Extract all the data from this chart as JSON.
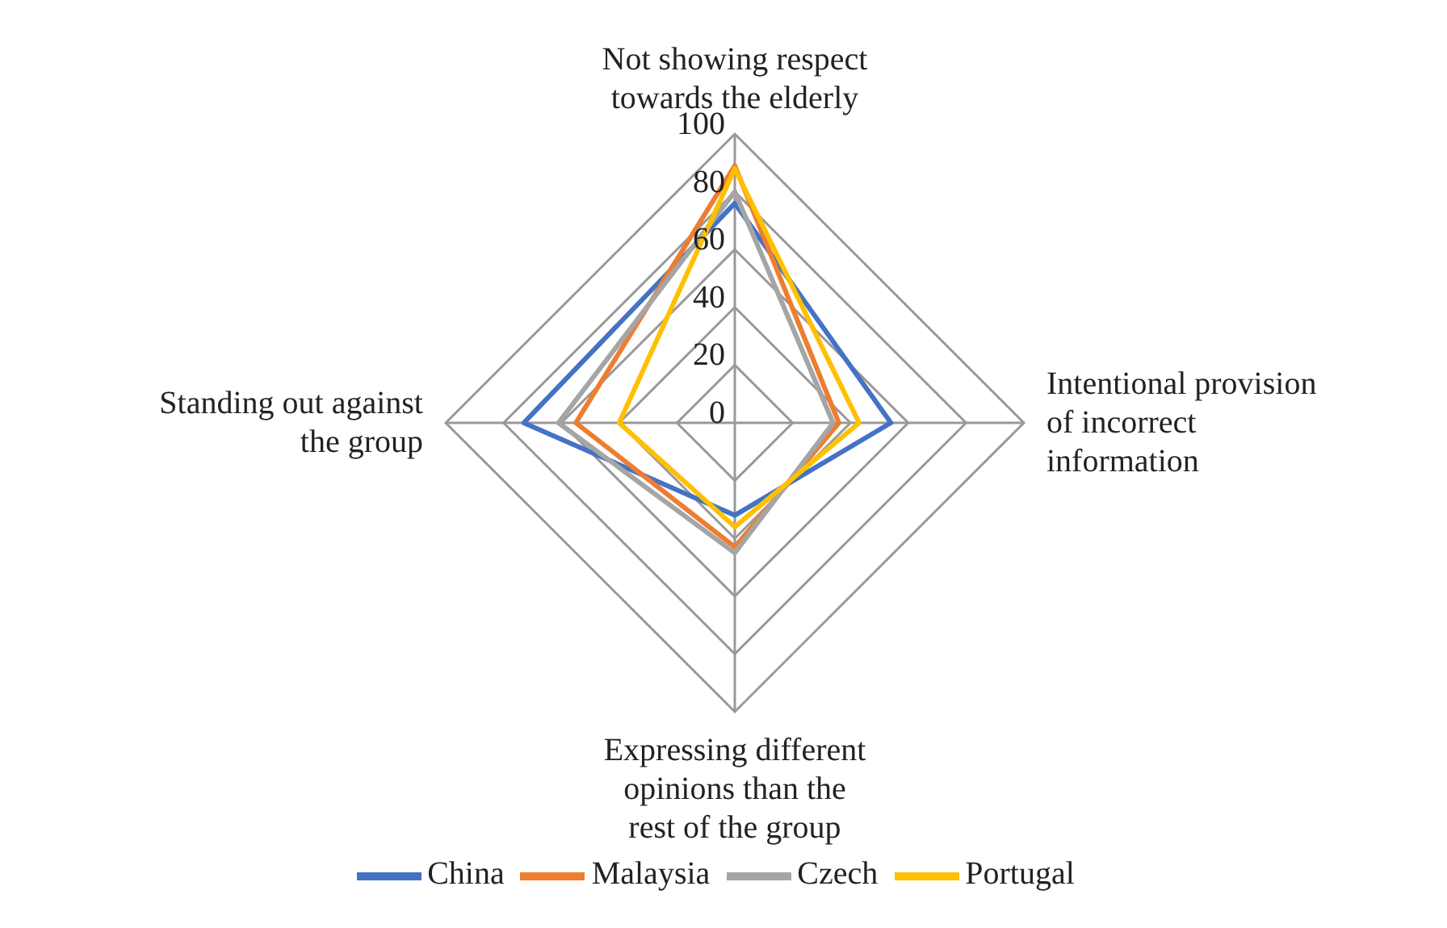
{
  "chart_data": {
    "type": "radar",
    "categories": [
      "Not showing respect towards the elderly",
      "Intentional provision of incorrect information",
      "Expressing different opinions than the rest of the group",
      "Standing out against the group"
    ],
    "series": [
      {
        "name": "China",
        "color": "#4472c4",
        "values": [
          76,
          54,
          32,
          73
        ]
      },
      {
        "name": "Malaysia",
        "color": "#ed7d31",
        "values": [
          89,
          36,
          43,
          55
        ]
      },
      {
        "name": "Czech",
        "color": "#a5a5a5",
        "values": [
          80,
          34,
          45,
          61
        ]
      },
      {
        "name": "Portugal",
        "color": "#ffc000",
        "values": [
          88,
          43,
          36,
          40
        ]
      }
    ],
    "ylim": [
      0,
      100
    ],
    "yticks": [
      0,
      20,
      40,
      60,
      80,
      100
    ],
    "grid": true,
    "legend": "bottom",
    "marker": "none"
  }
}
